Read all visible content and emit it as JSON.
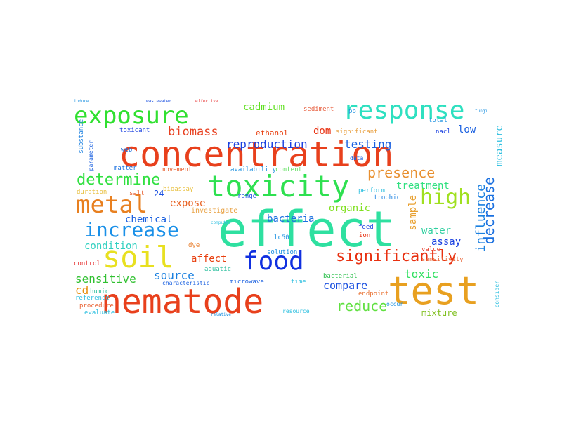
{
  "words": [
    {
      "text": "concentration",
      "color": "#e8401c"
    },
    {
      "text": "effect",
      "color": "#2ee0a0"
    },
    {
      "text": "test",
      "color": "#e8a020"
    },
    {
      "text": "nematode",
      "color": "#e8401c"
    },
    {
      "text": "toxicity",
      "color": "#2ee050"
    },
    {
      "text": "response",
      "color": "#2ee0c0"
    },
    {
      "text": "exposure",
      "color": "#30e030"
    },
    {
      "text": "soil",
      "color": "#e8e020"
    },
    {
      "text": "food",
      "color": "#1030e0"
    },
    {
      "text": "metal",
      "color": "#e88020"
    },
    {
      "text": "increase",
      "color": "#1a90e8"
    },
    {
      "text": "high",
      "color": "#a0e020"
    },
    {
      "text": "significantly",
      "color": "#e83010"
    },
    {
      "text": "determine",
      "color": "#30e040"
    },
    {
      "text": "presence",
      "color": "#e89030"
    },
    {
      "text": "decrease",
      "color": "#1a70e0"
    },
    {
      "text": "reproduction",
      "color": "#1a40e0"
    },
    {
      "text": "cadmium",
      "color": "#60e020"
    },
    {
      "text": "testing",
      "color": "#1a60e0"
    },
    {
      "text": "biomass",
      "color": "#e84020"
    },
    {
      "text": "influence",
      "color": "#1a80e0"
    },
    {
      "text": "treatment",
      "color": "#30e080"
    },
    {
      "text": "sample",
      "color": "#e8a030"
    },
    {
      "text": "reduce",
      "color": "#60e040"
    },
    {
      "text": "compare",
      "color": "#1a50e0"
    },
    {
      "text": "toxic",
      "color": "#30e060"
    },
    {
      "text": "sensitive",
      "color": "#30c030"
    },
    {
      "text": "source",
      "color": "#1a80e0"
    },
    {
      "text": "bacteria",
      "color": "#1a70e0"
    },
    {
      "text": "organic",
      "color": "#80e020"
    },
    {
      "text": "water",
      "color": "#30d0a0"
    },
    {
      "text": "assay",
      "color": "#1a40e0"
    },
    {
      "text": "condition",
      "color": "#30d0c0"
    },
    {
      "text": "chemical",
      "color": "#1a60e0"
    },
    {
      "text": "expose",
      "color": "#e86020"
    },
    {
      "text": "affect",
      "color": "#e84010"
    },
    {
      "text": "low",
      "color": "#1a60e0"
    },
    {
      "text": "measure",
      "color": "#30c0e0"
    },
    {
      "text": "dom",
      "color": "#e83010"
    },
    {
      "text": "ethanol",
      "color": "#e84010"
    },
    {
      "text": "mixture",
      "color": "#80c020"
    },
    {
      "text": "cd",
      "color": "#e89010"
    },
    {
      "text": "investigate",
      "color": "#e8a040"
    },
    {
      "text": "24",
      "color": "#1a50e0"
    },
    {
      "text": "salt",
      "color": "#e86030"
    },
    {
      "text": "duration",
      "color": "#e8c040"
    },
    {
      "text": "bioassay",
      "color": "#e8c040"
    },
    {
      "text": "availability",
      "color": "#1a90e0"
    },
    {
      "text": "movement",
      "color": "#e86030"
    },
    {
      "text": "matter",
      "color": "#1a70e0"
    },
    {
      "text": "content",
      "color": "#60e060"
    },
    {
      "text": "range",
      "color": "#1a50e0"
    },
    {
      "text": "perform",
      "color": "#30c0e0"
    },
    {
      "text": "trophic",
      "color": "#1a80e0"
    },
    {
      "text": "bacterial",
      "color": "#30c050"
    },
    {
      "text": "sediment",
      "color": "#e86040"
    },
    {
      "text": "pb",
      "color": "#1a90e0"
    },
    {
      "text": "ion",
      "color": "#e83010"
    },
    {
      "text": "significant",
      "color": "#e8a040"
    },
    {
      "text": "nacl",
      "color": "#1a40e0"
    },
    {
      "text": "total",
      "color": "#1a90e0"
    },
    {
      "text": "toxicant",
      "color": "#1a40e0"
    },
    {
      "text": "substance",
      "color": "#1a80e0"
    },
    {
      "text": "parameter",
      "color": "#1a60e0"
    },
    {
      "text": "web",
      "color": "#1a70e0"
    },
    {
      "text": "feed",
      "color": "#1a40e0"
    },
    {
      "text": "lc50",
      "color": "#1a90e0"
    },
    {
      "text": "dye",
      "color": "#e88030"
    },
    {
      "text": "aquatic",
      "color": "#30c0a0"
    },
    {
      "text": "solution",
      "color": "#1a90e0"
    },
    {
      "text": "value",
      "color": "#e84030"
    },
    {
      "text": "sensitivity",
      "color": "#e86030"
    },
    {
      "text": "microwave",
      "color": "#1a60e0"
    },
    {
      "text": "time",
      "color": "#30c0e0"
    },
    {
      "text": "endpoint",
      "color": "#e87030"
    },
    {
      "text": "humic",
      "color": "#30c0a0"
    },
    {
      "text": "reference",
      "color": "#30c0e0"
    },
    {
      "text": "control",
      "color": "#e84040"
    },
    {
      "text": "procedure",
      "color": "#e86030"
    },
    {
      "text": "evaluate",
      "color": "#30c0e0"
    },
    {
      "text": "characteristic",
      "color": "#1a60e0"
    },
    {
      "text": "resource",
      "color": "#30c0e0"
    },
    {
      "text": "consider",
      "color": "#30c0e0"
    },
    {
      "text": "occur",
      "color": "#1a90e0"
    },
    {
      "text": "induce",
      "color": "#1a90e0"
    },
    {
      "text": "wastewater",
      "color": "#1a50e0"
    },
    {
      "text": "effective",
      "color": "#e84040"
    },
    {
      "text": "data",
      "color": "#1a60e0"
    },
    {
      "text": "fungi",
      "color": "#1a90e0"
    },
    {
      "text": "relative",
      "color": "#1a90e0"
    },
    {
      "text": "computer",
      "color": "#30c0e0"
    }
  ]
}
